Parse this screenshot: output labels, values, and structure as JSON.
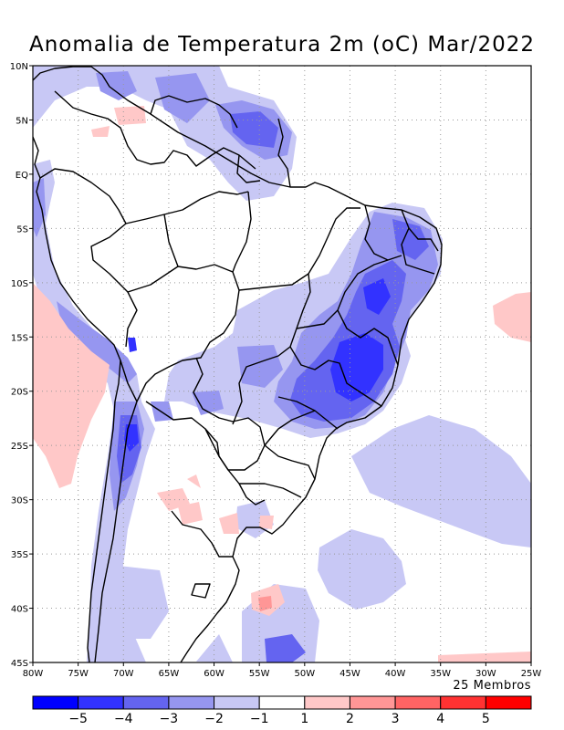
{
  "title": "Anomalia de Temperatura 2m (oC) Mar/2022",
  "members_label": "25 Membros",
  "map": {
    "extent": {
      "lon_min": -80,
      "lon_max": -25,
      "lat_min": -45,
      "lat_max": 10
    },
    "lat_labels": [
      {
        "lat": 10,
        "text": "10N"
      },
      {
        "lat": 5,
        "text": "5N"
      },
      {
        "lat": 0,
        "text": "EQ"
      },
      {
        "lat": -5,
        "text": "5S"
      },
      {
        "lat": -10,
        "text": "10S"
      },
      {
        "lat": -15,
        "text": "15S"
      },
      {
        "lat": -20,
        "text": "20S"
      },
      {
        "lat": -25,
        "text": "25S"
      },
      {
        "lat": -30,
        "text": "30S"
      },
      {
        "lat": -35,
        "text": "35S"
      },
      {
        "lat": -40,
        "text": "40S"
      },
      {
        "lat": -45,
        "text": "45S"
      }
    ],
    "lon_labels": [
      {
        "lon": -80,
        "text": "80W"
      },
      {
        "lon": -75,
        "text": "75W"
      },
      {
        "lon": -70,
        "text": "70W"
      },
      {
        "lon": -65,
        "text": "65W"
      },
      {
        "lon": -60,
        "text": "60W"
      },
      {
        "lon": -55,
        "text": "55W"
      },
      {
        "lon": -50,
        "text": "50W"
      },
      {
        "lon": -45,
        "text": "45W"
      },
      {
        "lon": -40,
        "text": "40W"
      },
      {
        "lon": -35,
        "text": "35W"
      },
      {
        "lon": -30,
        "text": "30W"
      },
      {
        "lon": -25,
        "text": "25W"
      }
    ],
    "gridlines": "dotted"
  },
  "colorbar": {
    "bins": [
      {
        "color": "#0000ff"
      },
      {
        "color": "#3232ff"
      },
      {
        "color": "#6464f0"
      },
      {
        "color": "#9696f0"
      },
      {
        "color": "#c8c8f5"
      },
      {
        "color": "#ffffff"
      },
      {
        "color": "#ffc8c8"
      },
      {
        "color": "#ff9696"
      },
      {
        "color": "#ff6464"
      },
      {
        "color": "#ff3232"
      },
      {
        "color": "#ff0000"
      }
    ],
    "labels": [
      "−5",
      "−4",
      "−3",
      "−2",
      "−1",
      "1",
      "2",
      "3",
      "4",
      "5"
    ]
  },
  "anomaly_regions": [
    {
      "name": "northeast-brazil-cold",
      "category": "−2",
      "lon": -38,
      "lat": -7
    },
    {
      "name": "central-east-brazil-cold-core",
      "category": "−4",
      "lon": -44,
      "lat": -18
    },
    {
      "name": "guianas-cold",
      "category": "−3",
      "lon": -57,
      "lat": 4
    },
    {
      "name": "chile-andes-cold",
      "category": "−4",
      "lon": -69,
      "lat": -23
    },
    {
      "name": "south-atlantic-cold",
      "category": "−1",
      "lon": -35,
      "lat": -28
    },
    {
      "name": "southeast-pacific-warm",
      "category": "1",
      "lon": -78,
      "lat": -22
    },
    {
      "name": "tropical-atlantic-warm",
      "category": "1",
      "lon": -26,
      "lat": -14
    },
    {
      "name": "north-colombia-warm",
      "category": "1",
      "lon": -70,
      "lat": 5
    },
    {
      "name": "uruguay-warm",
      "category": "1",
      "lon": -57,
      "lat": -31
    },
    {
      "name": "argentina-coast-warm",
      "category": "2",
      "lon": -54,
      "lat": -40
    }
  ]
}
